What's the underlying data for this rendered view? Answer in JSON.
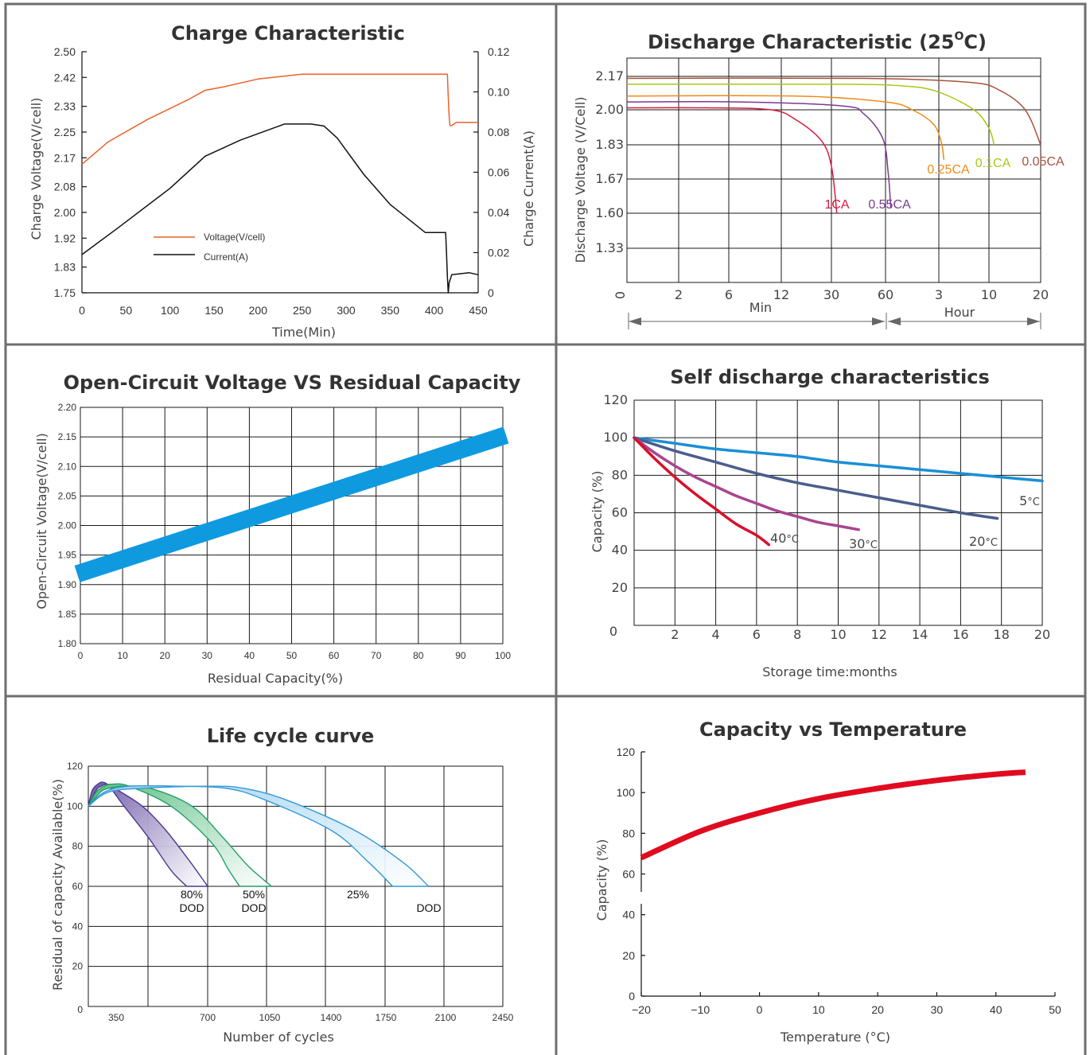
{
  "chart_data": [
    {
      "id": "charge",
      "type": "line",
      "title": "Charge Characteristic",
      "xlabel": "Time(Min)",
      "ylabel": "Charge Voltage(V/cell)",
      "ylabel_right": "Charge Current(A)",
      "xlim": [
        0,
        450
      ],
      "ylim": [
        1.75,
        2.5
      ],
      "ylim_right": [
        0,
        0.12
      ],
      "x_ticks": [
        "0",
        "50",
        "100",
        "150",
        "200",
        "250",
        "300",
        "350",
        "400",
        "450"
      ],
      "y_ticks": [
        "1.75",
        "1.83",
        "1.92",
        "2.00",
        "2.08",
        "2.17",
        "2.25",
        "2.33",
        "2.42",
        "2.50"
      ],
      "y_ticks_right": [
        "0",
        "0.02",
        "0.04",
        "0.06",
        "0.08",
        "0.10",
        "0.12"
      ],
      "grid": false,
      "legend": "center-left",
      "series": [
        {
          "name": "Voltage(V/cell)",
          "axis": "left",
          "color": "#e8632c",
          "x": [
            0,
            30,
            75,
            120,
            140,
            160,
            200,
            250,
            320,
            360,
            400,
            415,
            416,
            417,
            418,
            420,
            425,
            450
          ],
          "y": [
            2.15,
            2.22,
            2.29,
            2.35,
            2.38,
            2.39,
            2.415,
            2.43,
            2.43,
            2.43,
            2.43,
            2.43,
            2.36,
            2.3,
            2.27,
            2.27,
            2.28,
            2.28
          ]
        },
        {
          "name": "Current(A)",
          "axis": "right",
          "color": "#111111",
          "x": [
            0,
            40,
            100,
            140,
            180,
            230,
            260,
            275,
            290,
            320,
            350,
            390,
            405,
            413,
            414,
            415,
            416,
            417,
            420,
            440,
            450
          ],
          "y": [
            0.019,
            0.032,
            0.052,
            0.068,
            0.076,
            0.084,
            0.084,
            0.083,
            0.077,
            0.059,
            0.044,
            0.03,
            0.03,
            0.03,
            0.02,
            0.008,
            0.0,
            0.005,
            0.009,
            0.01,
            0.009
          ]
        }
      ]
    },
    {
      "id": "discharge",
      "type": "line",
      "title": "Discharge Characteristic (25",
      "title_degree": "O",
      "title_suffix": "C)",
      "ylabel": "Discharge Voltage (V/Cell)",
      "x_ticks": [
        "0",
        "2",
        "6",
        "12",
        "30",
        "60",
        "3",
        "10",
        "20"
      ],
      "x_group_labels": [
        "Min",
        "Hour"
      ],
      "y_ticks": [
        "2.17",
        "2.00",
        "1.83",
        "1.67",
        "1.60",
        "1.33"
      ],
      "grid": true,
      "series": [
        {
          "name": "1CA",
          "color": "#d81b3c",
          "x": [
            0,
            1.5,
            2.8,
            3.3,
            3.8,
            4.0,
            4.1
          ],
          "y": [
            2.01,
            2.01,
            2.0,
            1.95,
            1.85,
            1.73,
            1.6
          ]
        },
        {
          "name": "0.55CA",
          "color": "#7b3a8f",
          "x": [
            0,
            2.2,
            4.2,
            4.6,
            4.95,
            5.05,
            5.1
          ],
          "y": [
            2.04,
            2.04,
            2.02,
            1.98,
            1.86,
            1.7,
            1.61
          ]
        },
        {
          "name": "0.25CA",
          "color": "#ef8a17",
          "x": [
            0,
            3.3,
            5.0,
            5.5,
            5.9,
            6.05,
            6.1
          ],
          "y": [
            2.07,
            2.07,
            2.04,
            2.0,
            1.93,
            1.84,
            1.76
          ]
        },
        {
          "name": "0.1CA",
          "color": "#a9c817",
          "x": [
            0,
            4.2,
            5.4,
            6.0,
            6.7,
            7.0,
            7.1
          ],
          "y": [
            2.13,
            2.13,
            2.12,
            2.09,
            2.0,
            1.91,
            1.83
          ]
        },
        {
          "name": "0.05CA",
          "color": "#a8533e",
          "x": [
            0,
            4.6,
            6.6,
            7.2,
            7.7,
            8.0
          ],
          "y": [
            2.16,
            2.16,
            2.14,
            2.1,
            2.0,
            1.83
          ]
        }
      ]
    },
    {
      "id": "ocv",
      "type": "line",
      "title": "Open-Circuit Voltage VS Residual Capacity",
      "xlabel": "Residual Capacity(%)",
      "ylabel": "Open-Circuit Voltage(V/cell)",
      "xlim": [
        0,
        100
      ],
      "ylim": [
        1.8,
        2.2
      ],
      "x_ticks": [
        "0",
        "10",
        "20",
        "30",
        "40",
        "50",
        "60",
        "70",
        "80",
        "90",
        "100"
      ],
      "y_ticks": [
        "1.80",
        "1.85",
        "1.90",
        "1.95",
        "2.00",
        "2.05",
        "2.10",
        "2.15",
        "2.20"
      ],
      "grid": true,
      "series": [
        {
          "color": "#0f9ae0",
          "x": [
            0,
            100
          ],
          "y": [
            1.918,
            2.153
          ]
        }
      ]
    },
    {
      "id": "self_discharge",
      "type": "line",
      "title": "Self discharge characteristics",
      "xlabel": "Storage time:months",
      "ylabel": "Capacity (%)",
      "xlim": [
        0,
        20
      ],
      "ylim": [
        0,
        120
      ],
      "x_ticks": [
        "0",
        "2",
        "4",
        "6",
        "8",
        "10",
        "12",
        "14",
        "16",
        "18",
        "20"
      ],
      "y_ticks": [
        "0",
        "20",
        "40",
        "60",
        "80",
        "100",
        "120"
      ],
      "grid": true,
      "series": [
        {
          "name": "5°C",
          "color": "#1a8fd6",
          "x": [
            0,
            2,
            4,
            6,
            8,
            10,
            12,
            14,
            16,
            18,
            20
          ],
          "y": [
            100,
            97,
            94,
            92,
            90,
            87,
            85,
            83,
            81,
            79,
            77
          ]
        },
        {
          "name": "20°C",
          "color": "#4a5d8c",
          "x": [
            0,
            2,
            4,
            6,
            8,
            10,
            12,
            14,
            16,
            17.8
          ],
          "y": [
            100,
            93,
            87,
            81,
            76,
            72,
            68,
            64,
            60,
            57
          ]
        },
        {
          "name": "30°C",
          "color": "#a8458f",
          "x": [
            0,
            1,
            2,
            3,
            4,
            5,
            6,
            7,
            8,
            9,
            10,
            11
          ],
          "y": [
            100,
            92,
            85,
            79,
            74,
            69,
            65,
            61,
            58,
            55,
            53,
            51
          ]
        },
        {
          "name": "40°C",
          "color": "#d8102a",
          "x": [
            0,
            1,
            2,
            3,
            4,
            5,
            6,
            6.6
          ],
          "y": [
            100,
            89,
            79,
            70,
            62,
            54,
            48,
            43
          ]
        }
      ],
      "labels": [
        "40",
        "30",
        "20",
        "5"
      ],
      "degree_suffix": "°C"
    },
    {
      "id": "life_cycle",
      "type": "area",
      "title": "Life cycle curve",
      "xlabel": "Number of cycles",
      "ylabel": "Residual of capacity Available(%)",
      "xlim": [
        0,
        2450
      ],
      "ylim": [
        0,
        120
      ],
      "x_ticks": [
        "0",
        "350",
        "700",
        "1050",
        "1400",
        "1750",
        "2100",
        "2450"
      ],
      "y_ticks": [
        "0",
        "20",
        "40",
        "60",
        "80",
        "100",
        "120"
      ],
      "grid": true,
      "series": [
        {
          "name": "80%",
          "color": "#4b3a8f",
          "fill": "#6f5aa8",
          "upper": {
            "x": [
              0,
              50,
              120,
              180,
              260,
              380,
              470,
              560,
              620
            ],
            "y": [
              100,
              108,
              111,
              112,
              110,
              100,
              85,
              68,
              60
            ]
          },
          "lower": {
            "x": [
              0,
              100,
              160,
              240,
              330,
              450,
              540,
              640,
              700
            ],
            "y": [
              100,
              108,
              110,
              111,
              109,
              100,
              88,
              71,
              60
            ]
          }
        },
        {
          "name": "50%",
          "color": "#23a066",
          "fill": "#5bbf84",
          "upper": {
            "x": [
              0,
              100,
              200,
              300,
              400,
              560,
              720,
              820,
              880
            ],
            "y": [
              100,
              107,
              110,
              111,
              110,
              100,
              82,
              68,
              60
            ]
          },
          "lower": {
            "x": [
              0,
              150,
              260,
              380,
              480,
              640,
              790,
              930,
              1060
            ],
            "y": [
              100,
              107,
              109,
              110,
              109,
              100,
              84,
              70,
              60
            ]
          }
        },
        {
          "name": "25%",
          "color": "#3399d6",
          "fill": "#9fd3f2",
          "upper": {
            "x": [
              0,
              200,
              400,
              600,
              800,
              1000,
              1400,
              1640,
              1790
            ],
            "y": [
              100,
              107,
              110,
              110,
              109,
              104,
              88,
              72,
              60
            ]
          },
          "lower": {
            "x": [
              0,
              250,
              450,
              700,
              900,
              1150,
              1550,
              1850,
              2000
            ],
            "y": [
              100,
              107,
              109,
              110,
              109,
              103,
              88,
              72,
              60
            ]
          }
        }
      ],
      "annotations": [
        "80%",
        "DOD",
        "50%",
        "DOD",
        "25%",
        "DOD"
      ]
    },
    {
      "id": "capacity_temp",
      "type": "line",
      "title": "Capacity vs Temperature",
      "xlabel": "Temperature (°C)",
      "ylabel": "Capacity (%)",
      "xlim": [
        -20,
        50
      ],
      "ylim": [
        0,
        120
      ],
      "x_ticks": [
        "−20",
        "−10",
        "0",
        "10",
        "20",
        "30",
        "40",
        "50"
      ],
      "y_ticks": [
        "0",
        "20",
        "40",
        "60",
        "80",
        "100",
        "120"
      ],
      "grid": false,
      "series": [
        {
          "color": "#e00b20",
          "x": [
            -20,
            -10,
            0,
            10,
            20,
            30,
            40,
            45
          ],
          "y": [
            68,
            81,
            90,
            97,
            102,
            106,
            109,
            110
          ]
        }
      ]
    }
  ]
}
